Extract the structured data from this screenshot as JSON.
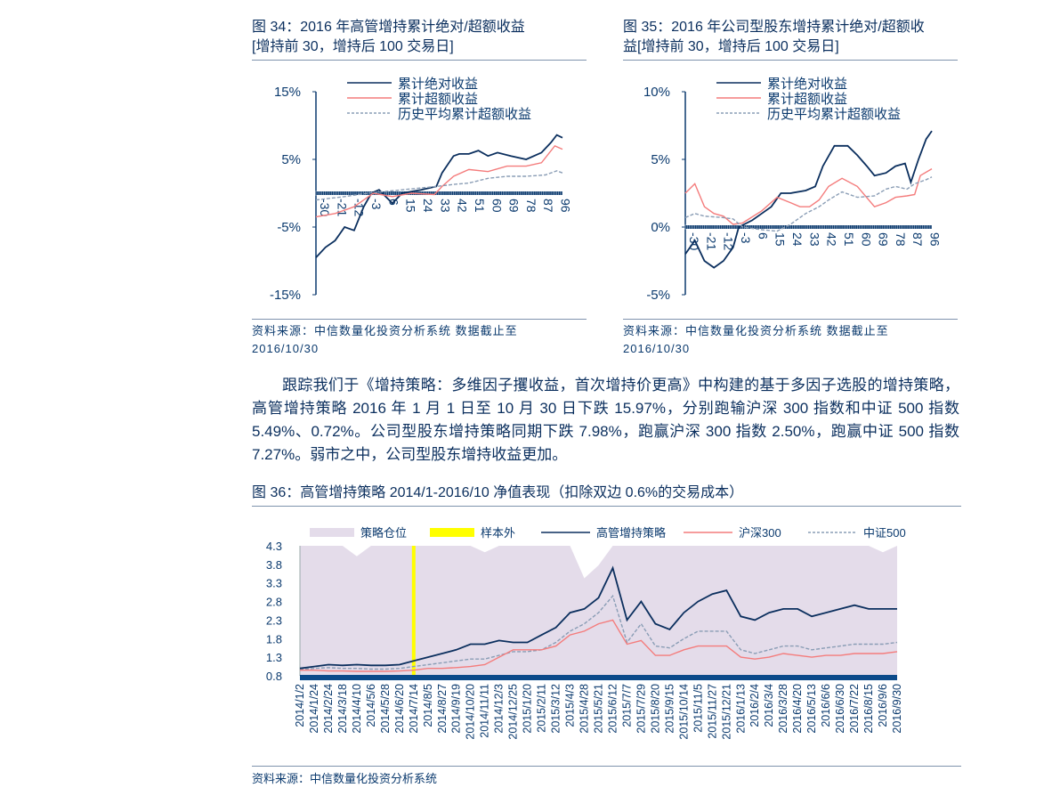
{
  "fig34": {
    "title_line1": "图 34：2016 年高管增持累计绝对/超额收益",
    "title_line2": "[增持前 30，增持后 100 交易日]",
    "source": "资料来源：中信数量化投资分析系统  数据截止至",
    "source_date": "2016/10/30"
  },
  "fig35": {
    "title_line1": "图 35：2016 年公司型股东增持累计绝对/超额收",
    "title_line2": "益[增持前 30，增持后 100 交易日]",
    "source": "资料来源：中信数量化投资分析系统  数据截止至",
    "source_date": "2016/10/30"
  },
  "paragraph": "跟踪我们于《增持策略：多维因子攫收益，首次增持价更高》中构建的基于多因子选股的增持策略，高管增持策略 2016 年 1 月 1 日至 10 月 30 日下跌 15.97%，分别跑输沪深 300 指数和中证 500 指数 5.49%、0.72%。公司型股东增持策略同期下跌 7.98%，跑赢沪深 300 指数 2.50%，跑赢中证 500 指数 7.27%。弱市之中，公司型股东增持收益更加。",
  "fig36": {
    "title": "图 36：高管增持策略 2014/1-2016/10 净值表现（扣除双边 0.6%的交易成本）",
    "source": "资料来源：中信数量化投资分析系统"
  },
  "chart_data": [
    {
      "type": "line",
      "ylim": [
        -15,
        15
      ],
      "yticks": [
        "15%",
        "5%",
        "-5%",
        "-15%"
      ],
      "ytick_values": [
        15,
        5,
        -5,
        -15
      ],
      "xticks": [
        "-30",
        "-21",
        "-12",
        "-3",
        "6",
        "15",
        "24",
        "33",
        "42",
        "51",
        "60",
        "69",
        "78",
        "87",
        "96"
      ],
      "xlim": [
        -30,
        99
      ],
      "colors": {
        "abs": "#0b2f5e",
        "excess": "#f47c7c",
        "hist": "#8a9db5",
        "axis": "#0b3a6e"
      },
      "series": [
        {
          "name": "累计绝对收益",
          "style": "solid",
          "x": [
            -30,
            -25,
            -20,
            -15,
            -10,
            -5,
            -1,
            3,
            10,
            15,
            25,
            33,
            36,
            42,
            45,
            50,
            55,
            60,
            65,
            72,
            80,
            88,
            93,
            96,
            99
          ],
          "y": [
            -9.5,
            -8,
            -7,
            -5,
            -5.5,
            -2,
            0,
            0.5,
            -1.5,
            0,
            0.5,
            1,
            3,
            5.5,
            5.8,
            5.8,
            6.3,
            5.5,
            6,
            5.5,
            5,
            6,
            7.5,
            8.6,
            8.2
          ]
        },
        {
          "name": "累计超额收益",
          "style": "solid",
          "x": [
            -30,
            -20,
            -10,
            -5,
            0,
            10,
            20,
            32,
            36,
            42,
            50,
            60,
            70,
            80,
            88,
            95,
            99
          ],
          "y": [
            -3.5,
            -3,
            -2,
            -1,
            0,
            -0.5,
            0,
            -0.2,
            1,
            2.5,
            3.5,
            3.2,
            4,
            4,
            4.5,
            7,
            6.5
          ]
        },
        {
          "name": "历史平均累计超额收益",
          "style": "dashed",
          "x": [
            -30,
            -15,
            -3,
            15,
            33,
            42,
            50,
            60,
            70,
            80,
            90,
            96,
            99
          ],
          "y": [
            -1,
            -0.5,
            0,
            0.5,
            1,
            1.3,
            1.5,
            2.2,
            2.5,
            2.5,
            2.7,
            3.3,
            3
          ]
        }
      ]
    },
    {
      "type": "line",
      "ylim": [
        -5,
        10
      ],
      "yticks": [
        "10%",
        "5%",
        "0%",
        "-5%"
      ],
      "ytick_values": [
        10,
        5,
        0,
        -5
      ],
      "xticks": [
        "-30",
        "-21",
        "-12",
        "-3",
        "6",
        "15",
        "24",
        "33",
        "42",
        "51",
        "60",
        "69",
        "78",
        "87",
        "96"
      ],
      "xlim": [
        -30,
        99
      ],
      "colors": {
        "abs": "#0b2f5e",
        "excess": "#f47c7c",
        "hist": "#8a9db5",
        "axis": "#0b3a6e"
      },
      "series": [
        {
          "name": "累计绝对收益",
          "style": "solid",
          "x": [
            -30,
            -25,
            -20,
            -15,
            -10,
            -5,
            -2,
            5,
            10,
            15,
            20,
            25,
            33,
            38,
            42,
            48,
            55,
            60,
            65,
            69,
            75,
            80,
            85,
            88,
            92,
            96,
            99
          ],
          "y": [
            -2,
            -1,
            -2.5,
            -3,
            -2.5,
            -1.5,
            0,
            0.5,
            1,
            1.5,
            2.5,
            2.5,
            2.7,
            3,
            4.5,
            6,
            6,
            5.3,
            4.5,
            3.8,
            4,
            4.5,
            4.7,
            3.3,
            5,
            6.5,
            7.1
          ]
        },
        {
          "name": "累计超额收益",
          "style": "solid",
          "x": [
            -30,
            -25,
            -20,
            -15,
            -10,
            -5,
            0,
            10,
            18,
            25,
            30,
            35,
            40,
            45,
            52,
            60,
            69,
            75,
            80,
            86,
            90,
            93,
            99
          ],
          "y": [
            2.5,
            3.2,
            1.5,
            1,
            0.8,
            0.2,
            0.3,
            1.2,
            2.2,
            1.8,
            1.5,
            1.5,
            2,
            3,
            3.6,
            3,
            1.5,
            1.8,
            2.2,
            2.3,
            2.4,
            3.8,
            4.3
          ]
        },
        {
          "name": "历史平均累计超额收益",
          "style": "dashed",
          "x": [
            -30,
            -25,
            -20,
            -10,
            -5,
            0,
            10,
            18,
            25,
            33,
            40,
            45,
            52,
            60,
            69,
            75,
            80,
            86,
            90,
            96,
            99
          ],
          "y": [
            0.7,
            1,
            0.8,
            0.7,
            0.6,
            0,
            -0.2,
            -0.3,
            0.2,
            1,
            1.5,
            2,
            2.6,
            2.2,
            2.3,
            2.8,
            3,
            2.8,
            3.2,
            3.5,
            3.7
          ]
        }
      ]
    },
    {
      "type": "line",
      "ylim": [
        0.8,
        4.3
      ],
      "yticks": [
        "4.3",
        "3.8",
        "3.3",
        "2.8",
        "2.3",
        "1.8",
        "1.3",
        "0.8"
      ],
      "ytick_values": [
        4.3,
        3.8,
        3.3,
        2.8,
        2.3,
        1.8,
        1.3,
        0.8
      ],
      "categories": [
        "2014/1/2",
        "2014/1/24",
        "2014/2/24",
        "2014/3/18",
        "2014/4/10",
        "2014/5/6",
        "2014/5/28",
        "2014/6/20",
        "2014/7/14",
        "2014/8/5",
        "2014/8/27",
        "2014/9/19",
        "2014/10/20",
        "2014/11/11",
        "2014/12/3",
        "2014/12/25",
        "2015/1/20",
        "2015/2/11",
        "2015/3/12",
        "2015/4/3",
        "2015/4/28",
        "2015/5/21",
        "2015/6/12",
        "2015/7/7",
        "2015/7/29",
        "2015/8/20",
        "2015/9/15",
        "2015/10/14",
        "2015/11/5",
        "2015/11/27",
        "2015/12/21",
        "2016/1/13",
        "2016/2/4",
        "2016/3/4",
        "2016/3/28",
        "2016/4/20",
        "2016/5/13",
        "2016/6/6",
        "2016/6/30",
        "2016/7/22",
        "2016/8/15",
        "2016/9/6",
        "2016/9/30"
      ],
      "colors": {
        "position": "#e4dcea",
        "out_of_sample": "#ffff00",
        "strategy": "#0b2f5e",
        "hs300": "#f47c7c",
        "csi500": "#8a9db5",
        "axis": "#0b4a8a"
      },
      "legend": [
        "策略仓位",
        "样本外",
        "高管增持策略",
        "沪深300",
        "中证500"
      ],
      "out_of_sample_start": "2014/7/14",
      "position": [
        1,
        1,
        1,
        1,
        0.92,
        1,
        1,
        1,
        1,
        1,
        1,
        1,
        1,
        0.95,
        1,
        1,
        1,
        1,
        1,
        1,
        0.75,
        0.85,
        1,
        1,
        1,
        1,
        1,
        1,
        1,
        1,
        1,
        1,
        1,
        1,
        1,
        1,
        1,
        1,
        1,
        1,
        1,
        0.95,
        1
      ],
      "series": [
        {
          "name": "高管增持策略",
          "style": "solid",
          "values": [
            1.0,
            1.05,
            1.1,
            1.08,
            1.1,
            1.08,
            1.08,
            1.1,
            1.2,
            1.3,
            1.4,
            1.5,
            1.65,
            1.65,
            1.75,
            1.7,
            1.7,
            1.9,
            2.1,
            2.5,
            2.6,
            2.9,
            3.7,
            2.3,
            2.8,
            2.2,
            2.05,
            2.5,
            2.8,
            3.0,
            3.1,
            2.4,
            2.3,
            2.5,
            2.6,
            2.6,
            2.4,
            2.5,
            2.6,
            2.7,
            2.6,
            2.6,
            2.6
          ]
        },
        {
          "name": "沪深300",
          "style": "solid",
          "values": [
            0.95,
            0.95,
            0.93,
            0.93,
            0.92,
            0.92,
            0.92,
            0.93,
            0.95,
            1.0,
            1.0,
            1.02,
            1.05,
            1.1,
            1.3,
            1.5,
            1.5,
            1.5,
            1.6,
            1.9,
            2.0,
            2.2,
            2.3,
            1.65,
            1.75,
            1.35,
            1.35,
            1.5,
            1.6,
            1.6,
            1.6,
            1.3,
            1.25,
            1.3,
            1.4,
            1.35,
            1.3,
            1.35,
            1.35,
            1.4,
            1.4,
            1.4,
            1.45
          ]
        },
        {
          "name": "中证500",
          "style": "dashed",
          "values": [
            0.97,
            1.0,
            1.02,
            1.0,
            1.0,
            0.98,
            0.98,
            1.0,
            1.05,
            1.1,
            1.15,
            1.2,
            1.25,
            1.25,
            1.35,
            1.45,
            1.45,
            1.5,
            1.7,
            2.0,
            2.2,
            2.5,
            2.95,
            1.7,
            2.2,
            1.6,
            1.55,
            1.8,
            2.0,
            2.0,
            2.0,
            1.5,
            1.4,
            1.5,
            1.6,
            1.6,
            1.5,
            1.55,
            1.6,
            1.65,
            1.65,
            1.65,
            1.7
          ]
        }
      ]
    }
  ]
}
